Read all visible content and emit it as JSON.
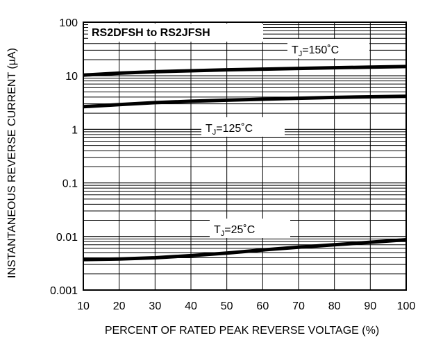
{
  "chart_data": {
    "type": "line",
    "title": "RS2DFSH to RS2JFSH",
    "xlabel": "PERCENT OF RATED PEAK REVERSE VOLTAGE (%)",
    "ylabel": "INSTANTANEOUS REVERSE CURRENT (µA)",
    "xlim": [
      10,
      100
    ],
    "ylim": [
      0.001,
      100
    ],
    "yscale": "log",
    "grid": true,
    "x_ticks": [
      "10",
      "20",
      "30",
      "40",
      "50",
      "60",
      "70",
      "80",
      "90",
      "100"
    ],
    "y_ticks": [
      "0.001",
      "0.01",
      "0.1",
      "1",
      "10",
      "100"
    ],
    "series": [
      {
        "name": "TJ=150°C",
        "label_main": "T",
        "label_sub": "J",
        "label_rest": "=150˚C",
        "x": [
          10,
          20,
          30,
          40,
          50,
          60,
          70,
          80,
          90,
          100
        ],
        "y": [
          10.3,
          11.2,
          11.9,
          12.4,
          12.9,
          13.3,
          13.7,
          14.1,
          14.5,
          14.9
        ]
      },
      {
        "name": "TJ=125°C",
        "label_main": "T",
        "label_sub": "J",
        "label_rest": "=125˚C",
        "x": [
          10,
          20,
          30,
          40,
          50,
          60,
          70,
          80,
          90,
          100
        ],
        "y": [
          2.65,
          2.9,
          3.15,
          3.35,
          3.5,
          3.65,
          3.8,
          3.95,
          4.05,
          4.15
        ]
      },
      {
        "name": "TJ=25°C",
        "label_main": "T",
        "label_sub": "J",
        "label_rest": "=25˚C",
        "x": [
          10,
          20,
          30,
          40,
          50,
          60,
          70,
          80,
          90,
          100
        ],
        "y": [
          0.0037,
          0.0038,
          0.004,
          0.0044,
          0.0049,
          0.0056,
          0.0063,
          0.007,
          0.0078,
          0.0087
        ]
      }
    ]
  }
}
